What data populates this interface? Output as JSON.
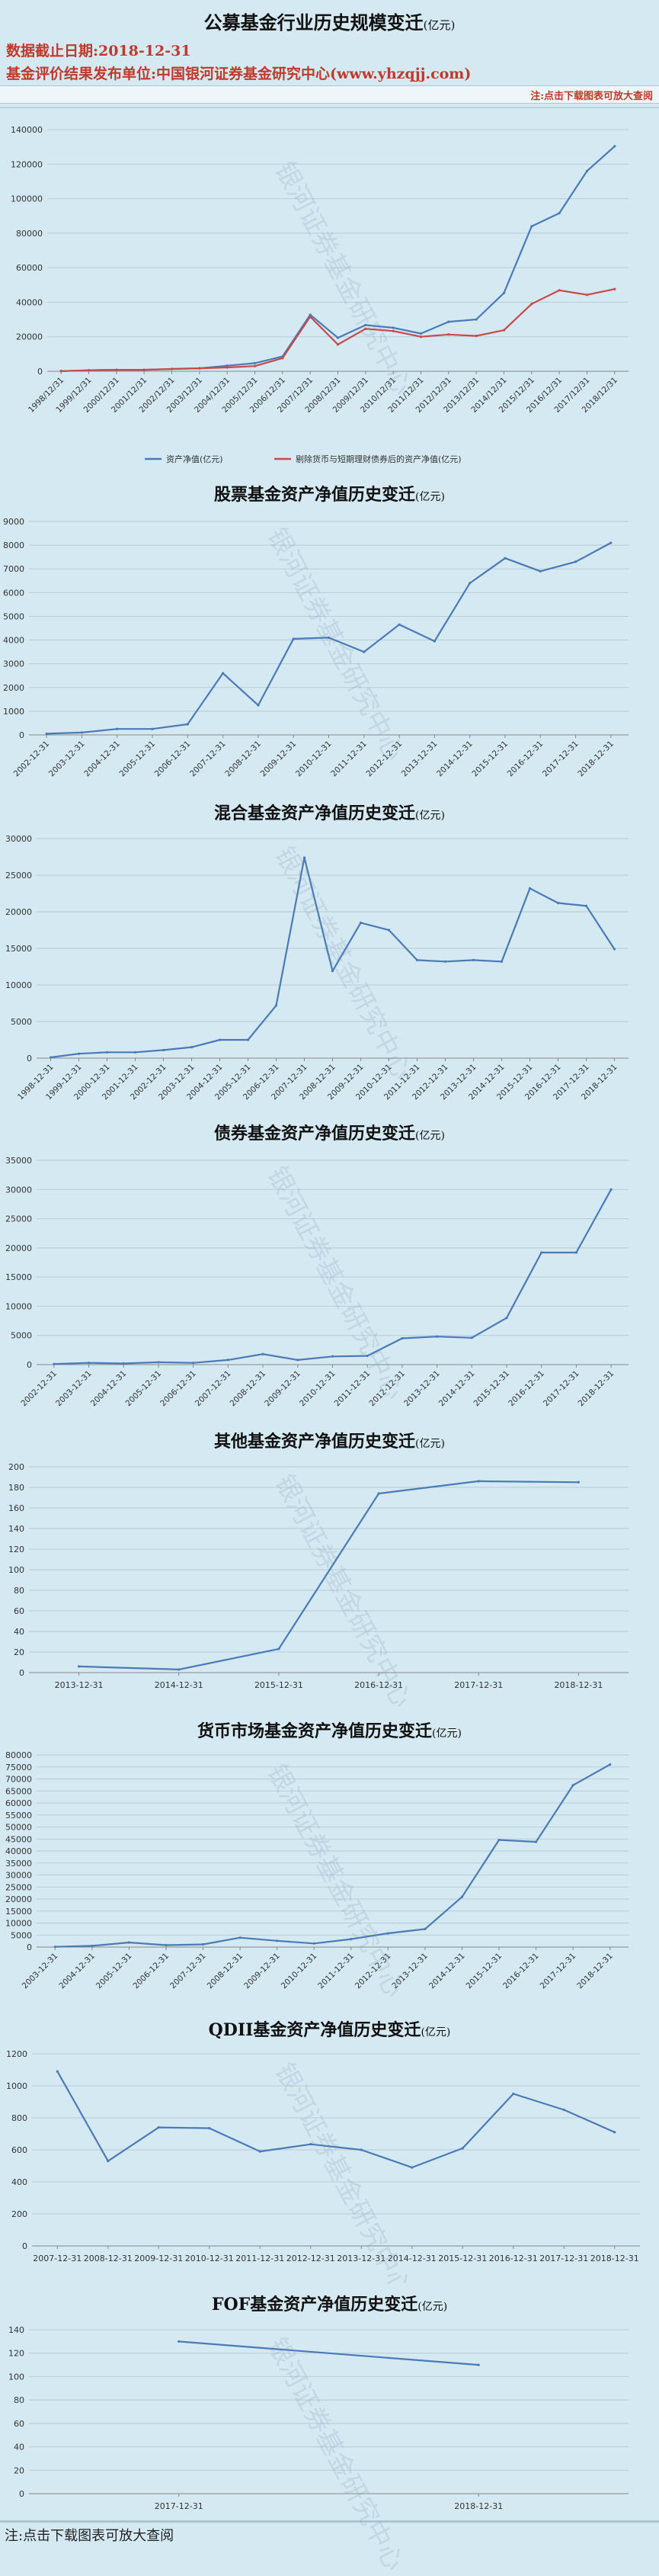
{
  "header": {
    "title": "公募基金行业历史规模变迁",
    "title_unit": "(亿元)",
    "date_line": "数据截止日期:2018-12-31",
    "source_line": "基金评价结果发布单位:中国银河证券基金研究中心(www.yhzqjj.com)",
    "note": "注:点击下载图表可放大查阅"
  },
  "watermark": "银河证券基金研究中心",
  "footer": {
    "note": "注:点击下载图表可放大查阅"
  },
  "colors": {
    "blue": "#4a7ab8",
    "red": "#c94848",
    "grid": "#b8ccd6",
    "axis": "#888888"
  },
  "chart_data": [
    {
      "type": "line",
      "title": "",
      "categories": [
        "1998/12/31",
        "1999/12/31",
        "2000/12/31",
        "2001/12/31",
        "2002/12/31",
        "2003/12/31",
        "2004/12/31",
        "2005/12/31",
        "2006/12/31",
        "2007/12/31",
        "2008/12/31",
        "2009/12/31",
        "2010/12/31",
        "2011/12/31",
        "2012/12/31",
        "2013/12/31",
        "2014/12/31",
        "2015/12/31",
        "2016/12/31",
        "2017/12/31",
        "2018/12/31"
      ],
      "ylim": [
        0,
        140000
      ],
      "yticks": [
        0,
        20000,
        40000,
        60000,
        80000,
        100000,
        120000,
        140000
      ],
      "grid": true,
      "legend": "bottom",
      "series": [
        {
          "name": "资产净值(亿元)",
          "color": "#4a7ab8",
          "values": [
            104,
            574,
            846,
            818,
            1328,
            1715,
            3246,
            4691,
            8565,
            32756,
            19389,
            26767,
            25197,
            21880,
            28661,
            30011,
            45353,
            83972,
            91593,
            116000,
            130346
          ]
        },
        {
          "name": "剔除货币与短期理财债券后的资产净值(亿元)",
          "color": "#c94848",
          "values": [
            104,
            574,
            846,
            818,
            1328,
            1715,
            2200,
            3000,
            7600,
            31600,
            15500,
            24600,
            23300,
            20000,
            21300,
            20500,
            23800,
            39000,
            46900,
            44300,
            47600
          ]
        }
      ]
    },
    {
      "type": "line",
      "title": "股票基金资产净值历史变迁",
      "title_unit": "(亿元)",
      "categories": [
        "2002-12-31",
        "2003-12-31",
        "2004-12-31",
        "2005-12-31",
        "2006-12-31",
        "2007-12-31",
        "2008-12-31",
        "2009-12-31",
        "2010-12-31",
        "2011-12-31",
        "2012-12-31",
        "2013-12-31",
        "2014-12-31",
        "2015-12-31",
        "2016-12-31",
        "2017-12-31",
        "2018-12-31"
      ],
      "ylim": [
        0,
        9000
      ],
      "yticks": [
        0,
        1000,
        2000,
        3000,
        4000,
        5000,
        6000,
        7000,
        8000,
        9000
      ],
      "grid": true,
      "series": [
        {
          "color": "#4a7ab8",
          "values": [
            50,
            100,
            250,
            250,
            450,
            2600,
            1250,
            4050,
            4100,
            3500,
            4650,
            3950,
            6400,
            7450,
            6900,
            7300,
            8100
          ]
        }
      ]
    },
    {
      "type": "line",
      "title": "混合基金资产净值历史变迁",
      "title_unit": "(亿元)",
      "categories": [
        "1998-12-31",
        "1999-12-31",
        "2000-12-31",
        "2001-12-31",
        "2002-12-31",
        "2003-12-31",
        "2004-12-31",
        "2005-12-31",
        "2006-12-31",
        "2007-12-31",
        "2008-12-31",
        "2009-12-31",
        "2010-12-31",
        "2011-12-31",
        "2012-12-31",
        "2013-12-31",
        "2014-12-31",
        "2015-12-31",
        "2016-12-31",
        "2017-12-31",
        "2018-12-31"
      ],
      "ylim": [
        0,
        30000
      ],
      "yticks": [
        0,
        5000,
        10000,
        15000,
        20000,
        25000,
        30000
      ],
      "grid": true,
      "series": [
        {
          "color": "#4a7ab8",
          "values": [
            100,
            600,
            800,
            800,
            1100,
            1500,
            2500,
            2500,
            7200,
            27400,
            11900,
            18500,
            17500,
            13400,
            13200,
            13400,
            13200,
            23200,
            21200,
            20800,
            14900
          ]
        }
      ]
    },
    {
      "type": "line",
      "title": "债券基金资产净值历史变迁",
      "title_unit": "(亿元)",
      "categories": [
        "2002-12-31",
        "2003-12-31",
        "2004-12-31",
        "2005-12-31",
        "2006-12-31",
        "2007-12-31",
        "2008-12-31",
        "2009-12-31",
        "2010-12-31",
        "2011-12-31",
        "2012-12-31",
        "2013-12-31",
        "2014-12-31",
        "2015-12-31",
        "2016-12-31",
        "2017-12-31",
        "2018-12-31"
      ],
      "ylim": [
        0,
        35000
      ],
      "yticks": [
        0,
        5000,
        10000,
        15000,
        20000,
        25000,
        30000,
        35000
      ],
      "grid": true,
      "series": [
        {
          "color": "#4a7ab8",
          "values": [
            100,
            300,
            200,
            400,
            300,
            800,
            1800,
            800,
            1400,
            1500,
            4500,
            4800,
            4600,
            8000,
            19200,
            19200,
            30000
          ]
        }
      ]
    },
    {
      "type": "line",
      "title": "其他基金资产净值历史变迁",
      "title_unit": "(亿元)",
      "categories": [
        "2013-12-31",
        "2014-12-31",
        "2015-12-31",
        "2016-12-31",
        "2017-12-31",
        "2018-12-31"
      ],
      "ylim": [
        0,
        200
      ],
      "yticks": [
        0,
        20,
        40,
        60,
        80,
        100,
        120,
        140,
        160,
        180,
        200
      ],
      "grid": true,
      "series": [
        {
          "color": "#4a7ab8",
          "values": [
            6,
            3,
            23,
            174,
            186,
            185
          ]
        }
      ]
    },
    {
      "type": "line",
      "title": "货币市场基金资产净值历史变迁",
      "title_unit": "(亿元)",
      "categories": [
        "2003-12-31",
        "2004-12-31",
        "2005-12-31",
        "2006-12-31",
        "2007-12-31",
        "2008-12-31",
        "2009-12-31",
        "2010-12-31",
        "2011-12-31",
        "2012-12-31",
        "2013-12-31",
        "2014-12-31",
        "2015-12-31",
        "2016-12-31",
        "2017-12-31",
        "2018-12-31"
      ],
      "ylim": [
        0,
        80000
      ],
      "yticks": [
        0,
        5000,
        10000,
        15000,
        20000,
        25000,
        30000,
        35000,
        40000,
        45000,
        50000,
        55000,
        60000,
        65000,
        70000,
        75000,
        80000
      ],
      "grid": true,
      "series": [
        {
          "color": "#4a7ab8",
          "values": [
            100,
            500,
            1900,
            800,
            1100,
            3900,
            2600,
            1500,
            3300,
            5700,
            7500,
            20900,
            44600,
            43800,
            67400,
            76000
          ]
        }
      ]
    },
    {
      "type": "line",
      "title": "QDII基金资产净值历史变迁",
      "title_unit": "(亿元)",
      "categories": [
        "2007-12-31",
        "2008-12-31",
        "2009-12-31",
        "2010-12-31",
        "2011-12-31",
        "2012-12-31",
        "2013-12-31",
        "2014-12-31",
        "2015-12-31",
        "2016-12-31",
        "2017-12-31",
        "2018-12-31"
      ],
      "ylim": [
        0,
        1200
      ],
      "yticks": [
        0,
        200,
        400,
        600,
        800,
        1000,
        1200
      ],
      "grid": true,
      "series": [
        {
          "color": "#4a7ab8",
          "values": [
            1090,
            530,
            740,
            735,
            590,
            635,
            600,
            490,
            610,
            950,
            850,
            710
          ]
        }
      ]
    },
    {
      "type": "line",
      "title": "FOF基金资产净值历史变迁",
      "title_unit": "(亿元)",
      "categories": [
        "2017-12-31",
        "2018-12-31"
      ],
      "ylim": [
        0,
        140
      ],
      "yticks": [
        0,
        20,
        40,
        60,
        80,
        100,
        120,
        140
      ],
      "grid": true,
      "series": [
        {
          "color": "#4a7ab8",
          "values": [
            130,
            110
          ]
        }
      ]
    }
  ]
}
